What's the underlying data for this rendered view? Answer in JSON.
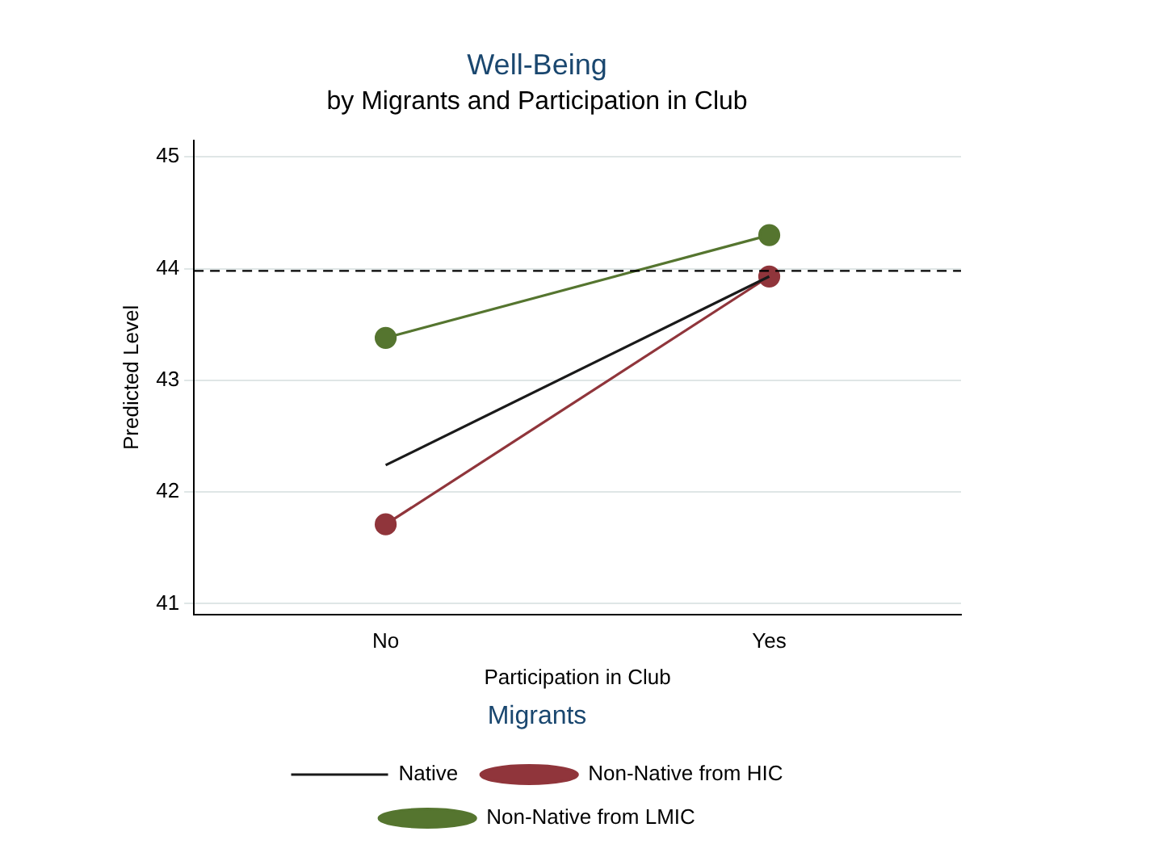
{
  "chart_data": {
    "type": "line",
    "title": "Well-Being",
    "subtitle": "by Migrants and Participation in Club",
    "xlabel": "Participation in Club",
    "ylabel": "Predicted Level",
    "legend_title": "Migrants",
    "categories": [
      "No",
      "Yes"
    ],
    "series": [
      {
        "name": "Native",
        "color": "#1a1a1a",
        "values": [
          42.24,
          43.93
        ],
        "marker": "none"
      },
      {
        "name": "Non-Native from HIC",
        "color": "#90353b",
        "values": [
          41.71,
          43.93
        ]
      },
      {
        "name": "Non-Native from LMIC",
        "color": "#55752f",
        "values": [
          43.38,
          44.3
        ]
      }
    ],
    "ylim": [
      40.9,
      45.15
    ],
    "yticks": [
      41,
      42,
      43,
      44,
      45
    ],
    "grid": "y",
    "legend": "bottom",
    "marker": "circle",
    "line_style": "solid",
    "ref_lines": [
      {
        "axis": "y",
        "value": 43.98,
        "color": "#000000",
        "line_style": "dashed"
      }
    ]
  }
}
